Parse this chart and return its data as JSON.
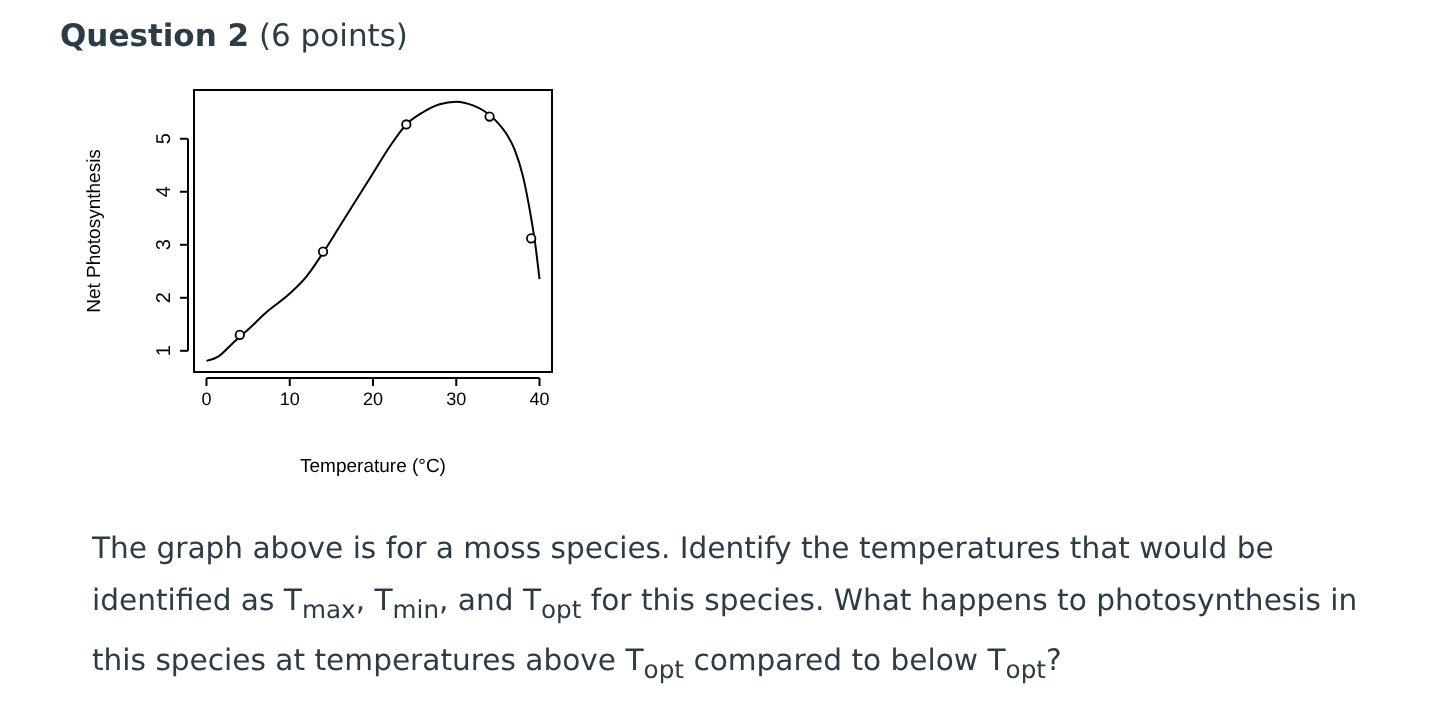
{
  "chart_data": {
    "type": "line",
    "title": "Question 2",
    "subtitle": "(6 points)",
    "xlabel": "Temperature (°C)",
    "ylabel": "Net Photosynthesis",
    "xlim": [
      -1.5,
      41.5
    ],
    "ylim": [
      0.6,
      5.92
    ],
    "xticks": [
      0,
      10,
      20,
      30,
      40
    ],
    "yticks": [
      1,
      2,
      3,
      4,
      5
    ],
    "grid": false,
    "series": [
      {
        "color": "#000000",
        "marker": "none",
        "x": [
          0,
          1.5,
          3,
          5,
          7,
          10,
          12,
          14,
          16,
          18,
          20,
          22,
          24,
          26,
          28,
          30,
          32,
          34,
          35,
          36,
          37,
          38,
          39,
          39.5,
          40
        ],
        "values": [
          0.81,
          0.9,
          1.12,
          1.4,
          1.7,
          2.08,
          2.4,
          2.85,
          3.35,
          3.85,
          4.35,
          4.85,
          5.27,
          5.5,
          5.65,
          5.7,
          5.63,
          5.45,
          5.3,
          5.1,
          4.8,
          4.3,
          3.5,
          3.0,
          2.35
        ]
      },
      {
        "type": "scatter",
        "color": "#000000",
        "marker": "circle",
        "x": [
          4,
          14,
          24,
          34,
          39
        ],
        "values": [
          1.3,
          2.87,
          5.27,
          5.42,
          3.12
        ]
      }
    ],
    "annotations": [
      "The graph above is for a moss species. Identify the temperatures that would be identified as T$_{max}$, T$_{min}$, and T$_{opt}$ for this species. What happens to photosynthesis in this species at temperatures above T$_{opt}$ compared to below T$_{opt}$?"
    ]
  }
}
